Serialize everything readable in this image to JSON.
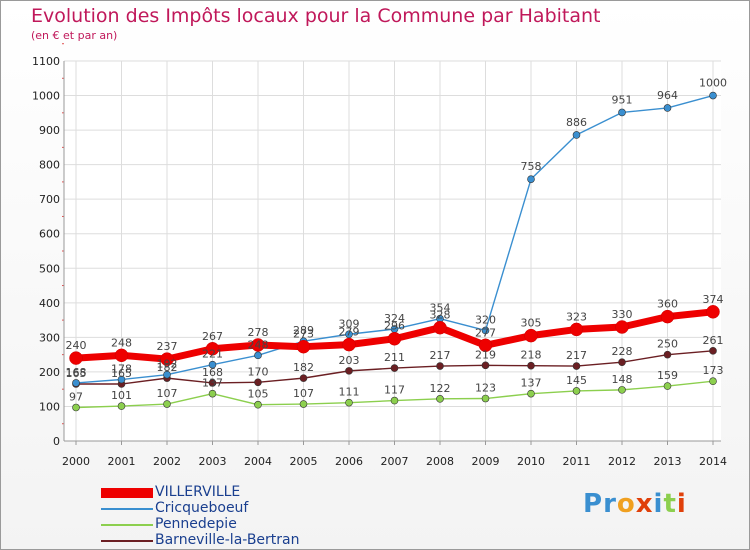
{
  "title": "Evolution des Impôts locaux pour la Commune par Habitant",
  "subtitle": "(en € et par an)",
  "logo": "Proxiti",
  "chart_data": {
    "type": "line",
    "title": "Evolution des Impôts locaux pour la Commune par Habitant",
    "subtitle": "(en € et par an)",
    "x": [
      "2000",
      "2001",
      "2002",
      "2003",
      "2004",
      "2005",
      "2006",
      "2007",
      "2008",
      "2009",
      "2010",
      "2011",
      "2012",
      "2013",
      "2014"
    ],
    "ylim": [
      0,
      1100
    ],
    "yticks": [
      0,
      100,
      200,
      300,
      400,
      500,
      600,
      700,
      800,
      900,
      1000,
      1100
    ],
    "grid": true,
    "legend": "bottom-left",
    "series": [
      {
        "name": "VILLERVILLE",
        "color": "#ee0000",
        "values": [
          240,
          248,
          237,
          267,
          278,
          273,
          279,
          296,
          328,
          277,
          305,
          323,
          330,
          360,
          374
        ]
      },
      {
        "name": "Cricqueboeuf",
        "color": "#3a8fd0",
        "values": [
          168,
          178,
          192,
          221,
          248,
          289,
          309,
          324,
          354,
          320,
          758,
          886,
          951,
          964,
          1000
        ]
      },
      {
        "name": "Pennedepie",
        "color": "#8ccf4e",
        "values": [
          97,
          101,
          107,
          137,
          105,
          107,
          111,
          117,
          122,
          123,
          137,
          145,
          148,
          159,
          173
        ]
      },
      {
        "name": "Barneville-la-Bertran",
        "color": "#6b1f23",
        "values": [
          165,
          165,
          182,
          168,
          170,
          182,
          203,
          211,
          217,
          219,
          218,
          217,
          228,
          250,
          261
        ]
      }
    ]
  }
}
